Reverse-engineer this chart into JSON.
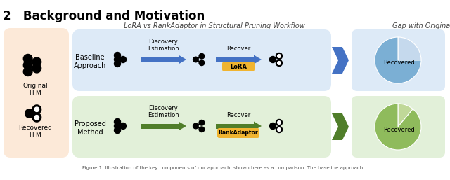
{
  "title_section": "2   Background and Motivation",
  "main_title": "LoRA vs RankAdaptor in Structural Pruning Workflow",
  "right_title": "Gap with Original",
  "caption": "Figure 1: Illustration of the key components of our approach, shown here as a comparison. The baseline approach...",
  "bg_color": "#ffffff",
  "left_box_color": "#fce9d8",
  "top_row_color": "#ddeaf7",
  "bottom_row_color": "#e2f0d9",
  "pie_top_bg": "#ddeaf7",
  "pie_bottom_bg": "#e2f0d9",
  "arrow_top_color": "#4472c4",
  "arrow_bottom_color": "#507e2a",
  "lora_box_color": "#f0b430",
  "rankadaptor_box_color": "#f0b430",
  "pie_top_recovered": "#7bafd4",
  "pie_top_gap": "#c5d9ed",
  "pie_bottom_recovered": "#8fbb5c",
  "pie_bottom_gap": "#c0d898",
  "baseline_label": "Baseline\nApproach",
  "proposed_label": "Proposed\nMethod",
  "discovery_label": "Discovery\nEstimation",
  "recover_label": "Recover",
  "lora_label": "LoRA",
  "rankadaptor_label": "RankAdaptor",
  "recovered_label": "Recovered",
  "original_llm_label": "Original\nLLM",
  "recovered_llm_label": "Recovered\nLLM"
}
